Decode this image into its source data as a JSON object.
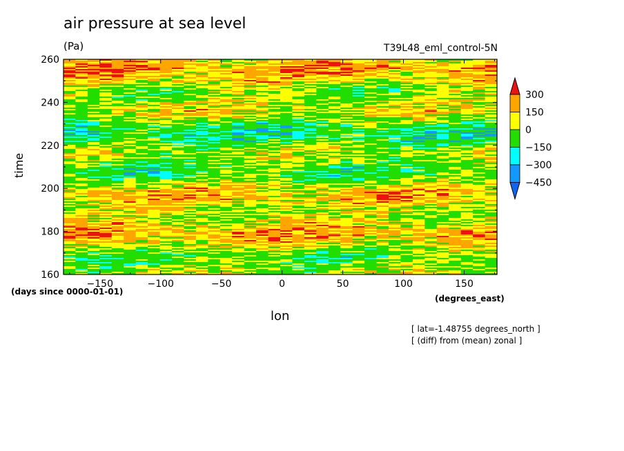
{
  "chart_data": {
    "type": "heatmap",
    "title": "air pressure at sea level",
    "units": "(Pa)",
    "run_label": "T39L48_eml_control-5N",
    "xlabel": "lon",
    "x_units": "(degrees_east)",
    "ylabel": "time",
    "y_units": "(days since 0000-01-01)",
    "xlim": [
      -180,
      177
    ],
    "ylim": [
      160,
      260
    ],
    "x_ticks": [
      -150,
      -100,
      -50,
      0,
      50,
      100,
      150
    ],
    "y_ticks": [
      160,
      180,
      200,
      220,
      240,
      260
    ],
    "colorbar": {
      "levels": [
        300,
        150,
        0,
        -150,
        -300,
        -450
      ],
      "colors": [
        "#ee1111",
        "#ffa500",
        "#ffff00",
        "#22dd00",
        "#00ffff",
        "#1199ff",
        "#1166ee"
      ],
      "extend": "both"
    },
    "annotations": [
      "[ lat=-1.48755 degrees_north ]",
      "[ (diff) from (mean) zonal ]"
    ]
  }
}
